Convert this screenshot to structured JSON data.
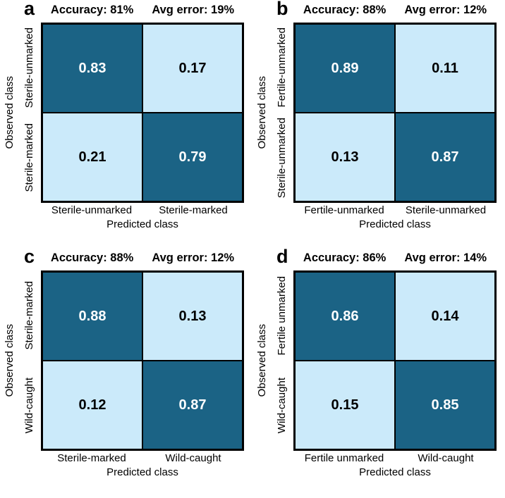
{
  "figure": {
    "description": "Four 2x2 confusion matrices (panels a-d) comparing observed vs predicted mosquito classes",
    "xlabel": "Predicted class",
    "ylabel": "Observed class"
  },
  "colors": {
    "dark-cell": "#1b6385",
    "light-cell": "#cbeafa",
    "dark-cell-text": "#ffffff",
    "light-cell-text": "#000000",
    "border": "#000000",
    "page-bg": "#ffffff"
  },
  "chart_data": [
    {
      "type": "heatmap",
      "panel_letter": "a",
      "accuracy_label": "Accuracy: 81%",
      "avg_error_label": "Avg error: 19%",
      "accuracy_pct": 81,
      "avg_error_pct": 19,
      "xlabel": "Predicted class",
      "ylabel": "Observed class",
      "x_categories": [
        "Sterile-unmarked",
        "Sterile-marked"
      ],
      "y_categories": [
        "Sterile-unmarked",
        "Sterile-marked"
      ],
      "values": [
        [
          0.83,
          0.17
        ],
        [
          0.21,
          0.79
        ]
      ],
      "cell_labels": [
        [
          "0.83",
          "0.17"
        ],
        [
          "0.21",
          "0.79"
        ]
      ],
      "colorscale": {
        "high": "#1b6385",
        "low": "#cbeafa"
      }
    },
    {
      "type": "heatmap",
      "panel_letter": "b",
      "accuracy_label": "Accuracy: 88%",
      "avg_error_label": "Avg error: 12%",
      "accuracy_pct": 88,
      "avg_error_pct": 12,
      "xlabel": "Predicted class",
      "ylabel": "Observed class",
      "x_categories": [
        "Fertile-unmarked",
        "Sterile-unmarked"
      ],
      "y_categories": [
        "Fertile-unmarked",
        "Sterile-unmarked"
      ],
      "values": [
        [
          0.89,
          0.11
        ],
        [
          0.13,
          0.87
        ]
      ],
      "cell_labels": [
        [
          "0.89",
          "0.11"
        ],
        [
          "0.13",
          "0.87"
        ]
      ],
      "colorscale": {
        "high": "#1b6385",
        "low": "#cbeafa"
      }
    },
    {
      "type": "heatmap",
      "panel_letter": "c",
      "accuracy_label": "Accuracy: 88%",
      "avg_error_label": "Avg error: 12%",
      "accuracy_pct": 88,
      "avg_error_pct": 12,
      "xlabel": "Predicted class",
      "ylabel": "Observed class",
      "x_categories": [
        "Sterile-marked",
        "Wild-caught"
      ],
      "y_categories": [
        "Sterile-marked",
        "Wild-caught"
      ],
      "values": [
        [
          0.88,
          0.13
        ],
        [
          0.12,
          0.87
        ]
      ],
      "cell_labels": [
        [
          "0.88",
          "0.13"
        ],
        [
          "0.12",
          "0.87"
        ]
      ],
      "colorscale": {
        "high": "#1b6385",
        "low": "#cbeafa"
      }
    },
    {
      "type": "heatmap",
      "panel_letter": "d",
      "accuracy_label": "Accuracy: 86%",
      "avg_error_label": "Avg error: 14%",
      "accuracy_pct": 86,
      "avg_error_pct": 14,
      "xlabel": "Predicted class",
      "ylabel": "Observed class",
      "x_categories": [
        "Fertile unmarked",
        "Wild-caught"
      ],
      "y_categories": [
        "Fertile unmarked",
        "Wild-caught"
      ],
      "values": [
        [
          0.86,
          0.14
        ],
        [
          0.15,
          0.85
        ]
      ],
      "cell_labels": [
        [
          "0.86",
          "0.14"
        ],
        [
          "0.15",
          "0.85"
        ]
      ],
      "colorscale": {
        "high": "#1b6385",
        "low": "#cbeafa"
      }
    }
  ]
}
